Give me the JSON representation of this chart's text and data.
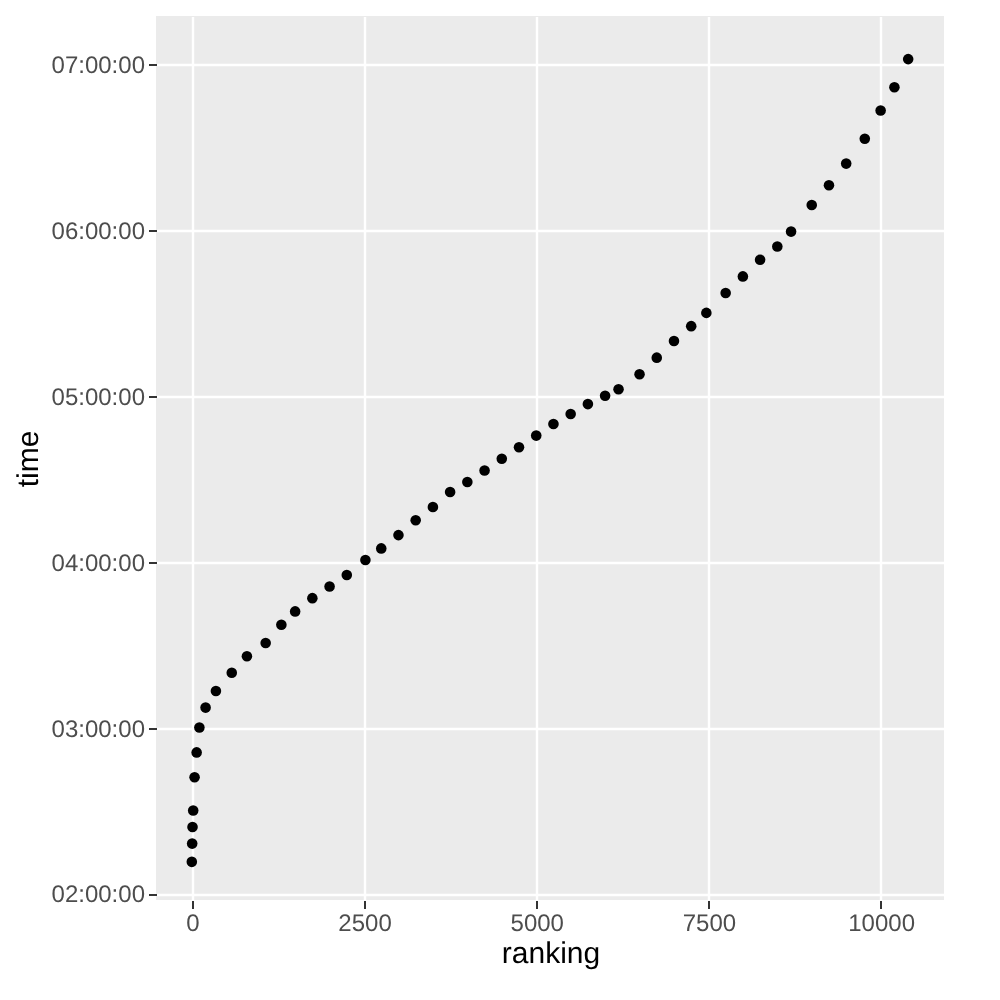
{
  "chart_data": {
    "type": "scatter",
    "xlabel": "ranking",
    "ylabel": "time",
    "x": [
      0,
      5,
      10,
      20,
      40,
      70,
      110,
      200,
      350,
      580,
      800,
      1072,
      1300,
      1500,
      1750,
      2000,
      2250,
      2520,
      2750,
      3000,
      3250,
      3500,
      3750,
      4000,
      4250,
      4500,
      4750,
      5000,
      5250,
      5500,
      5750,
      6000,
      6195,
      6500,
      6750,
      7000,
      7250,
      7470,
      7750,
      8000,
      8250,
      8500,
      8700,
      9000,
      9250,
      9500,
      9770,
      10000,
      10200,
      10400
    ],
    "series": [
      {
        "color": "#000000",
        "values": [
          2.19,
          2.3,
          2.4,
          2.5,
          2.7,
          2.85,
          3.0,
          3.12,
          3.22,
          3.33,
          3.43,
          3.51,
          3.62,
          3.7,
          3.78,
          3.85,
          3.92,
          4.01,
          4.08,
          4.16,
          4.25,
          4.33,
          4.42,
          4.48,
          4.55,
          4.62,
          4.69,
          4.76,
          4.83,
          4.89,
          4.95,
          5.0,
          5.04,
          5.13,
          5.23,
          5.33,
          5.42,
          5.5,
          5.62,
          5.72,
          5.82,
          5.9,
          5.99,
          6.15,
          6.27,
          6.4,
          6.55,
          6.72,
          6.86,
          7.03
        ]
      }
    ],
    "xlim": [
      -520,
      10920
    ],
    "xticks": [
      0,
      2500,
      5000,
      7500,
      10000
    ],
    "ylim": [
      1.96,
      7.29
    ],
    "yticks": [
      {
        "value": 2,
        "label": "02:00:00"
      },
      {
        "value": 3,
        "label": "03:00:00"
      },
      {
        "value": 4,
        "label": "04:00:00"
      },
      {
        "value": 5,
        "label": "05:00:00"
      },
      {
        "value": 6,
        "label": "06:00:00"
      },
      {
        "value": 7,
        "label": "07:00:00"
      }
    ],
    "grid": true,
    "marker": "circle"
  }
}
